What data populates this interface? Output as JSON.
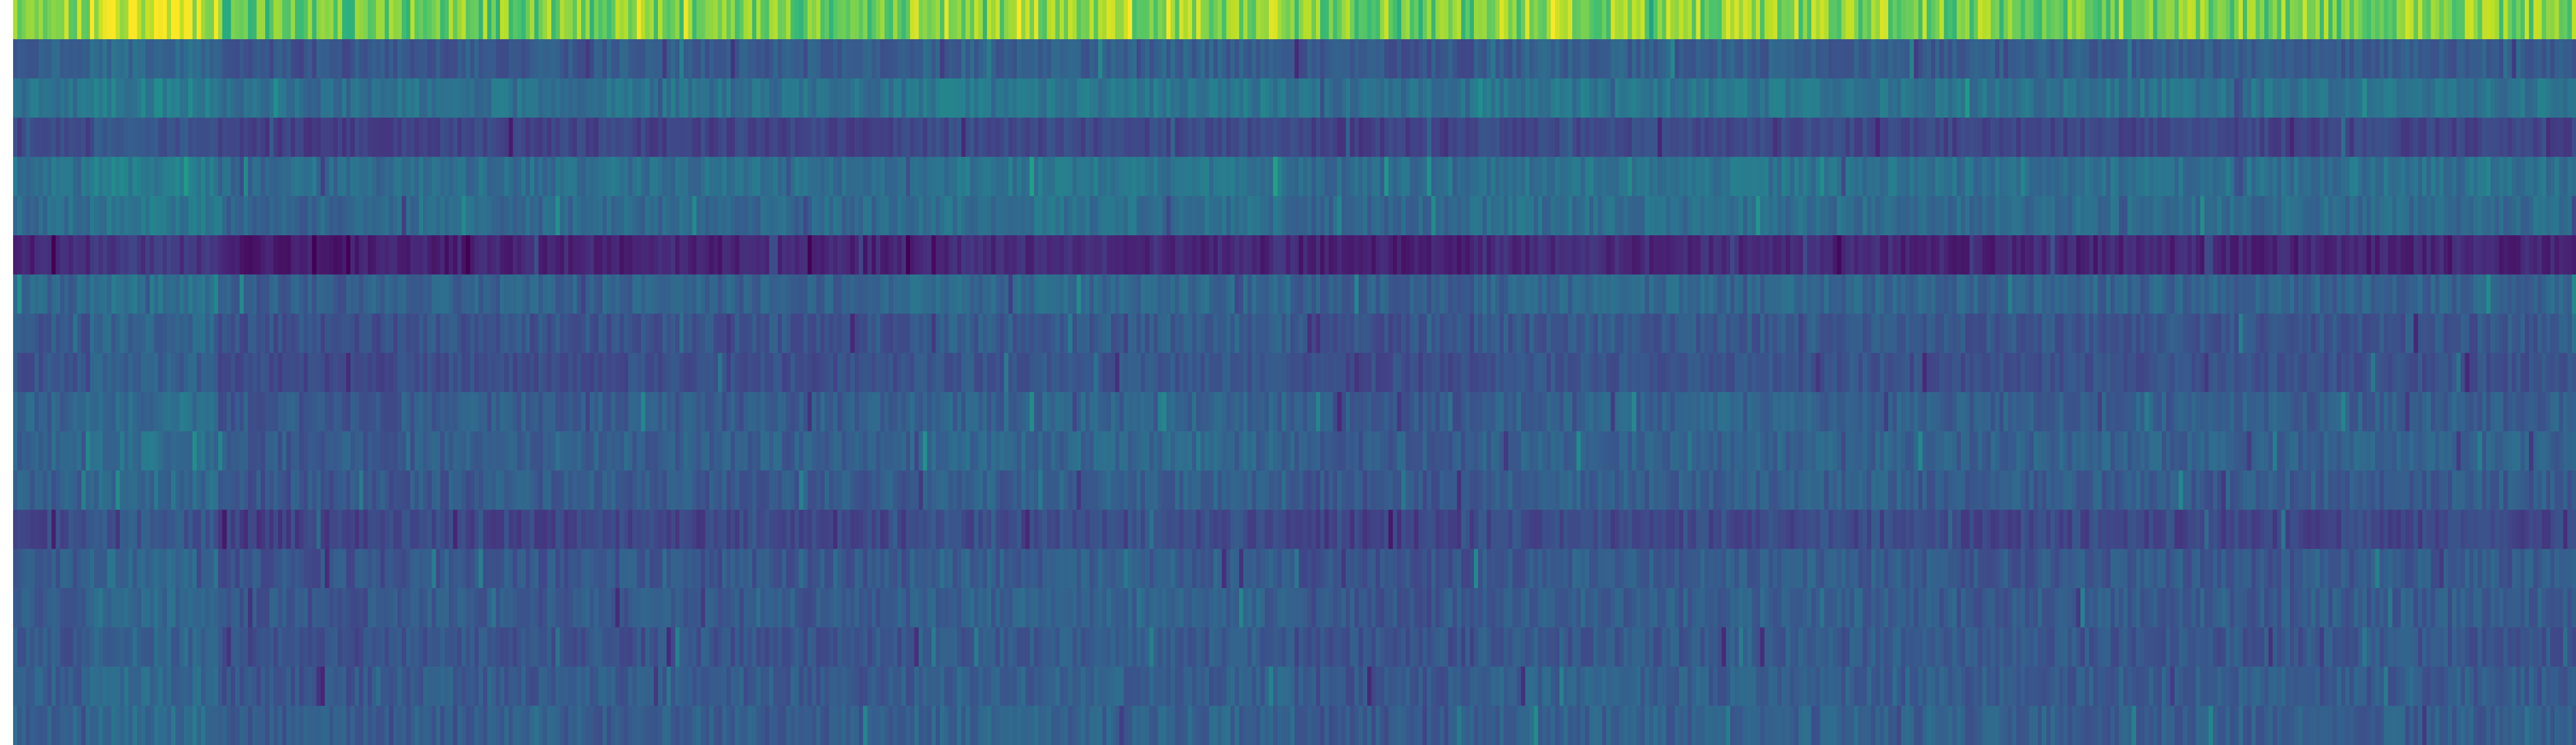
{
  "chart_data": {
    "type": "heatmap",
    "title": "",
    "xlabel": "",
    "ylabel": "",
    "colormap": "viridis",
    "colorbar": false,
    "axes_visible": false,
    "ticks_visible": false,
    "n_rows": 19,
    "n_cols": 600,
    "value_range": [
      0,
      1
    ],
    "row_levels": [
      0.78,
      0.28,
      0.37,
      0.2,
      0.36,
      0.34,
      0.1,
      0.31,
      0.26,
      0.24,
      0.29,
      0.3,
      0.28,
      0.21,
      0.27,
      0.28,
      0.26,
      0.28,
      0.29
    ],
    "row_spread": [
      0.14,
      0.06,
      0.06,
      0.05,
      0.06,
      0.06,
      0.05,
      0.06,
      0.06,
      0.05,
      0.06,
      0.06,
      0.06,
      0.06,
      0.06,
      0.06,
      0.06,
      0.06,
      0.06
    ],
    "column_band_profile": [
      {
        "from": 0.0,
        "to": 0.03,
        "offset": 0.02
      },
      {
        "from": 0.03,
        "to": 0.08,
        "offset": 0.1
      },
      {
        "from": 0.08,
        "to": 0.15,
        "offset": -0.03
      },
      {
        "from": 0.15,
        "to": 0.35,
        "offset": 0.0
      },
      {
        "from": 0.35,
        "to": 0.5,
        "offset": 0.04
      },
      {
        "from": 0.5,
        "to": 0.57,
        "offset": -0.02
      },
      {
        "from": 0.57,
        "to": 0.74,
        "offset": 0.03
      },
      {
        "from": 0.74,
        "to": 1.0,
        "offset": 0.01
      }
    ]
  }
}
